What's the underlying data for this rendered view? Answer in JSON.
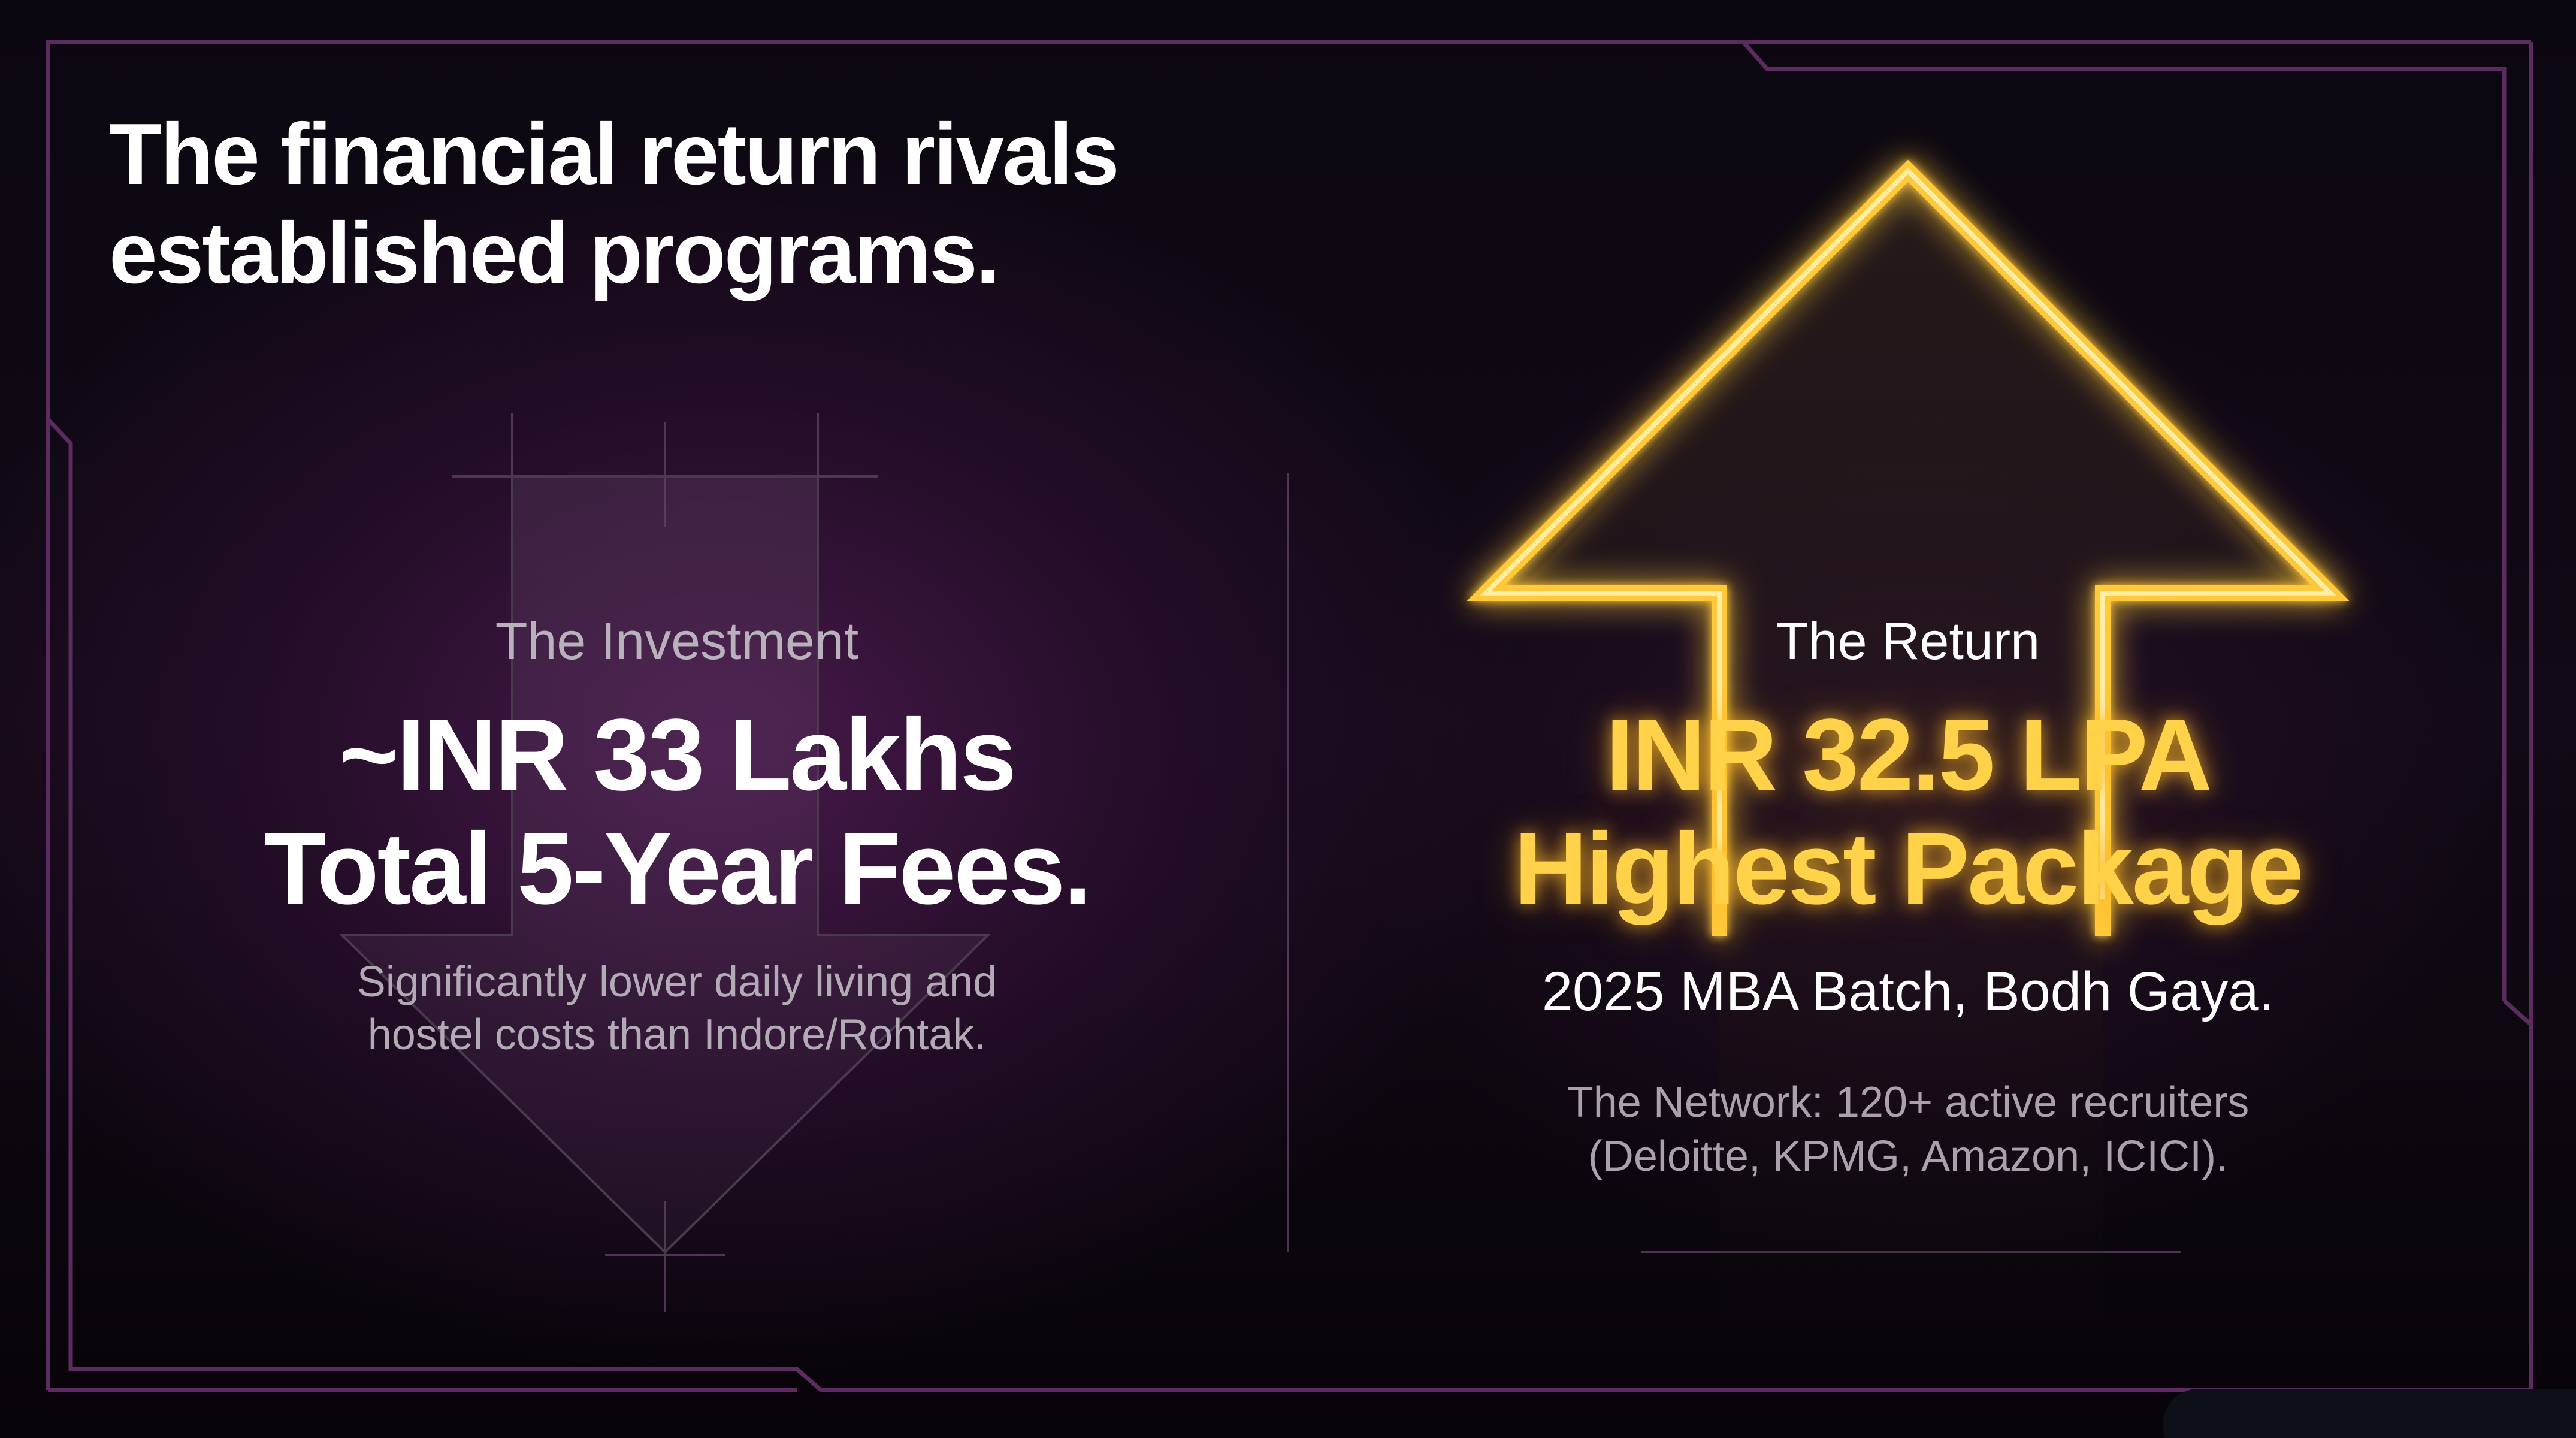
{
  "headline": {
    "line1": "The financial return rivals",
    "line2": "established programs."
  },
  "investment": {
    "label": "The Investment",
    "amount": "~INR 33 Lakhs",
    "total": "Total 5-Year Fees.",
    "note_line1": "Significantly lower daily living and",
    "note_line2": "hostel costs than Indore/Rohtak.",
    "arrow_direction": "down"
  },
  "return": {
    "label": "The Return",
    "package": "INR 32.5 LPA",
    "highest": "Highest Package",
    "batch": "2025 MBA Batch, Bodh Gaya.",
    "network_line1": "The Network: 120+ active recruiters",
    "network_line2": "(Deloitte, KPMG, Amazon, ICICI).",
    "arrow_direction": "up"
  },
  "colors": {
    "background": "#0b0710",
    "frame": "#5a2a5e",
    "gold": "#ffd24a",
    "text": "#ffffff",
    "muted_text": "#b2aab5"
  }
}
